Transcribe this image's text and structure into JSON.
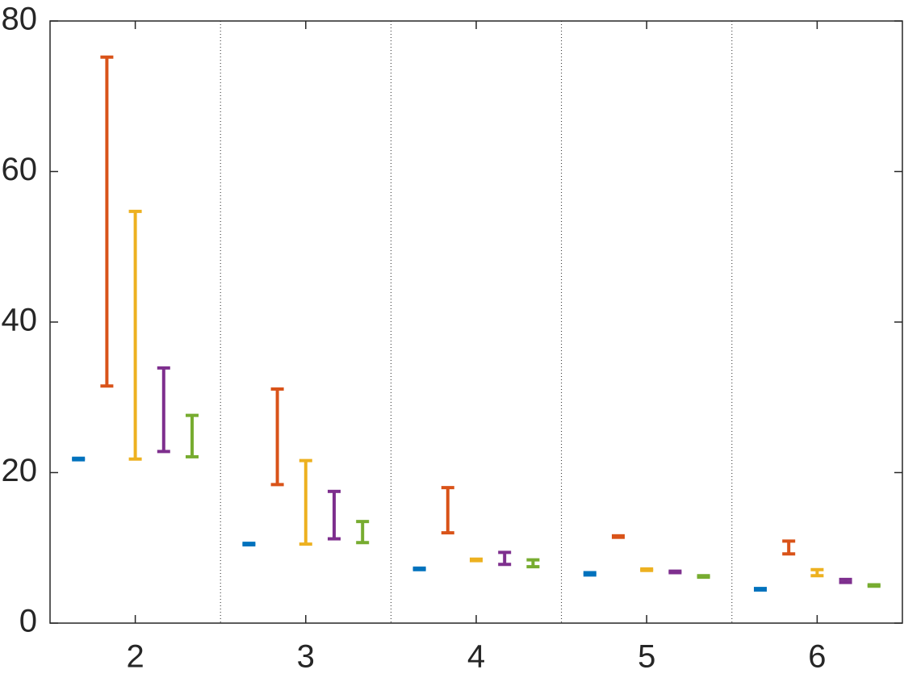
{
  "chart_data": {
    "type": "errorbar",
    "categories": [
      "2",
      "3",
      "4",
      "5",
      "6"
    ],
    "series": [
      {
        "color": "#0072bd",
        "low": [
          21.7,
          10.4,
          7.1,
          6.4,
          4.4
        ],
        "high": [
          21.9,
          10.6,
          7.3,
          6.7,
          4.6
        ]
      },
      {
        "color": "#d95319",
        "low": [
          31.5,
          18.4,
          12.0,
          11.4,
          9.2
        ],
        "high": [
          75.2,
          31.1,
          18.0,
          11.6,
          10.9
        ]
      },
      {
        "color": "#edb120",
        "low": [
          21.8,
          10.5,
          8.3,
          7.0,
          6.3
        ],
        "high": [
          54.7,
          21.6,
          8.5,
          7.2,
          7.1
        ]
      },
      {
        "color": "#7e2f8e",
        "low": [
          22.8,
          11.2,
          7.8,
          6.7,
          5.4
        ],
        "high": [
          33.9,
          17.5,
          9.4,
          6.9,
          5.8
        ]
      },
      {
        "color": "#77ac30",
        "low": [
          22.1,
          10.7,
          7.5,
          6.1,
          4.9
        ],
        "high": [
          27.6,
          13.5,
          8.4,
          6.3,
          5.1
        ]
      }
    ],
    "ylim": [
      0,
      80
    ],
    "yticks": [
      0,
      20,
      40,
      60,
      80
    ]
  }
}
